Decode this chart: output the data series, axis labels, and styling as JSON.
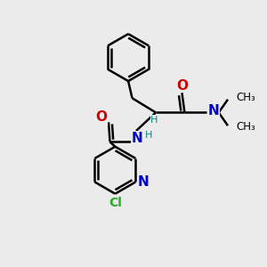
{
  "bg_color": "#ebebeb",
  "atom_colors": {
    "C": "#000000",
    "N": "#0000cc",
    "O": "#cc0000",
    "H": "#008888",
    "Cl": "#2aaa2a"
  },
  "bond_color": "#000000",
  "bond_width": 1.8,
  "fig_size": [
    3.0,
    3.0
  ],
  "dpi": 100
}
